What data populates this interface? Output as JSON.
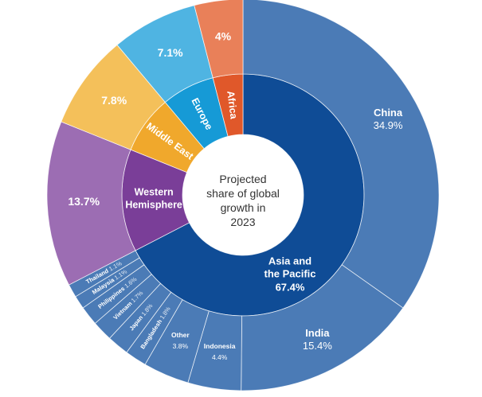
{
  "chart_data": {
    "type": "sunburst",
    "title": "Projected share of global growth in 2023",
    "center_text": [
      "Projected",
      "share of global",
      "growth in",
      "2023"
    ],
    "unit": "%",
    "regions": [
      {
        "name": "Asia and the Pacific",
        "label_lines": [
          "Asia and",
          "the Pacific"
        ],
        "value": 67.4,
        "color": "#0f4c96",
        "outer_color": "#4b7bb6",
        "children": [
          {
            "name": "China",
            "value": 34.9
          },
          {
            "name": "India",
            "value": 15.4
          },
          {
            "name": "Indonesia",
            "value": 4.4
          },
          {
            "name": "Other",
            "value": 3.8
          },
          {
            "name": "Bangladesh",
            "value": 1.8
          },
          {
            "name": "Japan",
            "value": 1.8
          },
          {
            "name": "Vietnam",
            "value": 1.7
          },
          {
            "name": "Philippines",
            "value": 1.6
          },
          {
            "name": "Malaysia",
            "value": 1.1
          },
          {
            "name": "Thailand",
            "value": 1.1
          }
        ]
      },
      {
        "name": "Western Hemisphere",
        "label_lines": [
          "Western",
          "Hemisphere"
        ],
        "value": 13.7,
        "color": "#7a3e98",
        "outer_color": "#9c6db3"
      },
      {
        "name": "Middle East",
        "label_lines": [
          "Middle East"
        ],
        "value": 7.8,
        "color": "#f0a82c",
        "outer_color": "#f4c05a"
      },
      {
        "name": "Europe",
        "label_lines": [
          "Europe"
        ],
        "value": 7.1,
        "color": "#169ad6",
        "outer_color": "#4fb4e2"
      },
      {
        "name": "Africa",
        "label_lines": [
          "Africa"
        ],
        "value": 4,
        "color": "#e0582a",
        "outer_color": "#e98059"
      }
    ]
  }
}
